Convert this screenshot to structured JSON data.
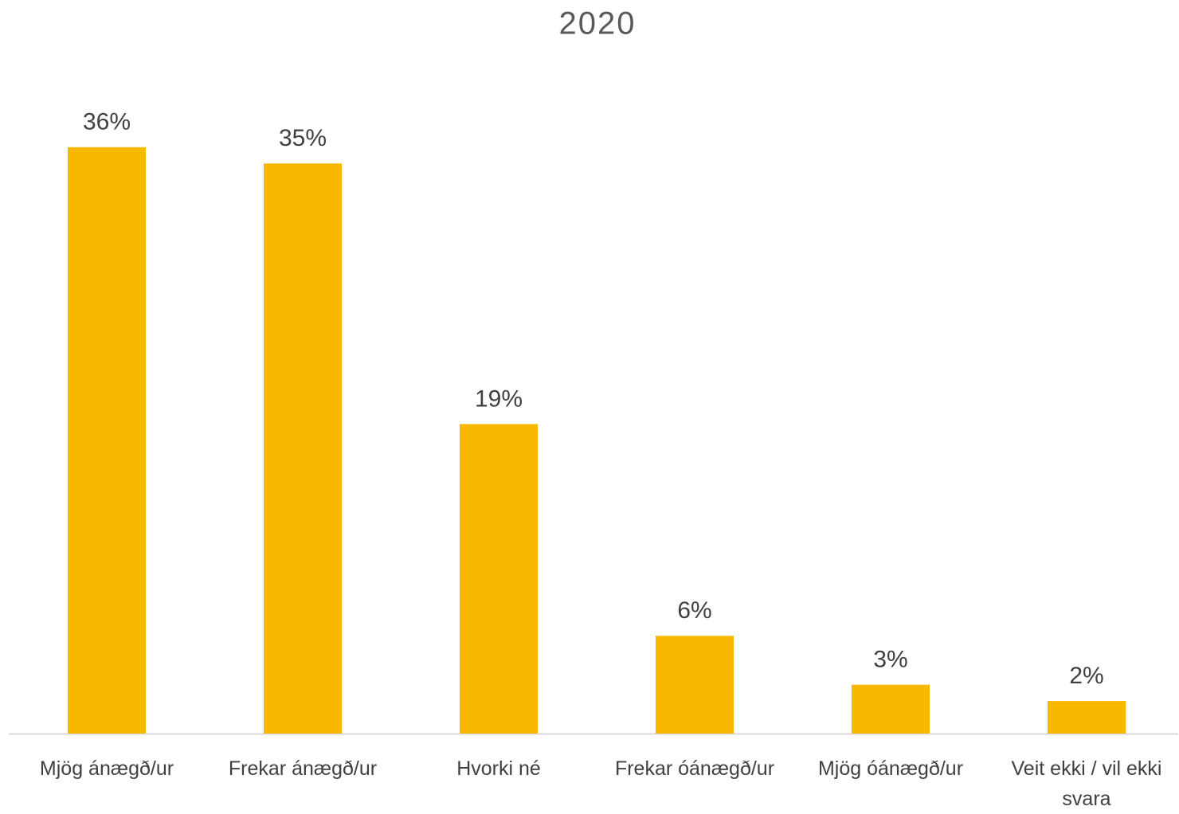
{
  "chart_data": {
    "type": "bar",
    "title": "2020",
    "categories": [
      "Mjög ánægð/ur",
      "Frekar ánægð/ur",
      "Hvorki né",
      "Frekar óánægð/ur",
      "Mjög óánægð/ur",
      "Veit ekki / vil ekki svara"
    ],
    "values": [
      36,
      35,
      19,
      6,
      3,
      2
    ],
    "value_labels": [
      "36%",
      "35%",
      "19%",
      "6%",
      "3%",
      "2%"
    ],
    "color": "#f9b800",
    "ylim": [
      0,
      40
    ]
  }
}
